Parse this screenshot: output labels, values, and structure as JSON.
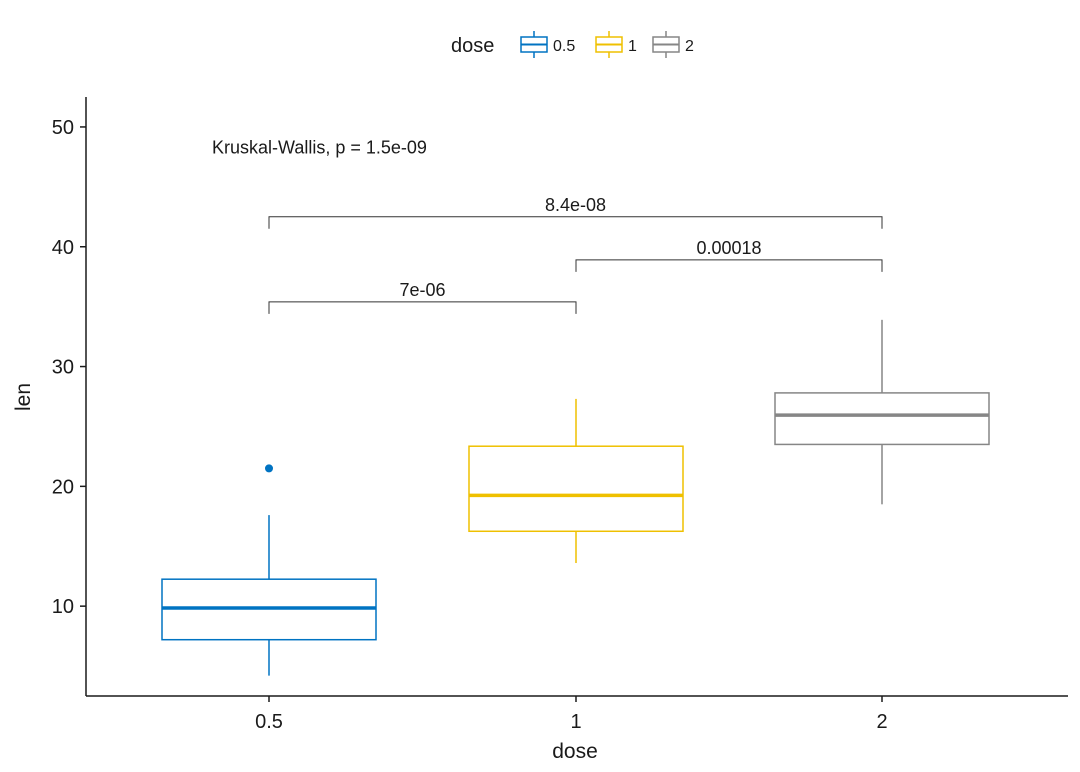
{
  "chart_data": {
    "type": "boxplot",
    "xlabel": "dose",
    "ylabel": "len",
    "ylim": [
      2.5,
      52.5
    ],
    "yticks": [
      10,
      20,
      30,
      40,
      50
    ],
    "categories": [
      "0.5",
      "1",
      "2"
    ],
    "legend": {
      "title": "dose",
      "position": "top",
      "entries": [
        "0.5",
        "1",
        "2"
      ]
    },
    "colors": [
      "#0073C2",
      "#EFC000",
      "#868686"
    ],
    "boxes": [
      {
        "category": "0.5",
        "whisker_low": 4.2,
        "q1": 7.2,
        "median": 9.85,
        "q3": 12.25,
        "whisker_high": 17.6,
        "outliers": [
          21.5
        ]
      },
      {
        "category": "1",
        "whisker_low": 13.6,
        "q1": 16.25,
        "median": 19.25,
        "q3": 23.35,
        "whisker_high": 27.3,
        "outliers": []
      },
      {
        "category": "2",
        "whisker_low": 18.5,
        "q1": 23.5,
        "median": 25.95,
        "q3": 27.8,
        "whisker_high": 33.9,
        "outliers": []
      }
    ],
    "global_test": {
      "text": "Kruskal-Wallis, p = 1.5e-09",
      "y": 48.3
    },
    "comparisons": [
      {
        "from": "0.5",
        "to": "1",
        "label": "7e-06",
        "y": 35.4
      },
      {
        "from": "1",
        "to": "2",
        "label": "0.00018",
        "y": 38.9
      },
      {
        "from": "0.5",
        "to": "2",
        "label": "8.4e-08",
        "y": 42.5
      }
    ]
  }
}
